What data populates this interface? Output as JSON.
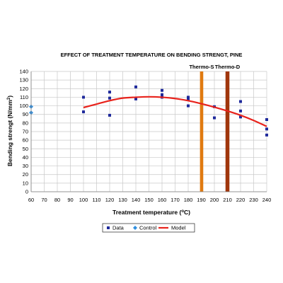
{
  "chart_data": {
    "type": "scatter",
    "title": "EFFECT OF TREATMENT TEMPERATURE ON BENDING STRENGT, PINE",
    "xlabel_main": "Treatment temperature (",
    "xlabel_sup": "o",
    "xlabel_tail": "C)",
    "ylabel_main": "Bending strengt (N/mm",
    "ylabel_sup": "2",
    "ylabel_tail": ")",
    "xlim": [
      60,
      240
    ],
    "ylim": [
      0,
      140
    ],
    "x_ticks": [
      "60",
      "70",
      "80",
      "90",
      "100",
      "110",
      "120",
      "130",
      "140",
      "150",
      "160",
      "170",
      "180",
      "190",
      "200",
      "210",
      "220",
      "230",
      "240"
    ],
    "y_ticks": [
      "0",
      "10",
      "20",
      "30",
      "40",
      "50",
      "60",
      "70",
      "80",
      "90",
      "100",
      "110",
      "120",
      "130",
      "140"
    ],
    "grid": true,
    "legend_position": "bottom-center",
    "bands": [
      {
        "name": "Thermo-S",
        "x_from": 189,
        "x_to": 191.5,
        "color": "#e07a10"
      },
      {
        "name": "Thermo-D",
        "x_from": 208.5,
        "x_to": 211.5,
        "color": "#a0360c"
      }
    ],
    "series": [
      {
        "name": "Data",
        "kind": "points",
        "marker": "square",
        "color": "#1f2a9c",
        "points": [
          [
            100,
            110
          ],
          [
            100,
            93
          ],
          [
            120,
            116
          ],
          [
            120,
            109
          ],
          [
            120,
            89
          ],
          [
            140,
            122
          ],
          [
            140,
            108
          ],
          [
            160,
            118
          ],
          [
            160,
            113
          ],
          [
            160,
            110
          ],
          [
            180,
            110
          ],
          [
            180,
            108
          ],
          [
            180,
            100
          ],
          [
            200,
            99
          ],
          [
            200,
            86
          ],
          [
            220,
            105
          ],
          [
            220,
            94
          ],
          [
            220,
            87
          ],
          [
            240,
            84
          ],
          [
            240,
            73
          ],
          [
            240,
            66
          ]
        ]
      },
      {
        "name": "Control",
        "kind": "points",
        "marker": "diamond",
        "color": "#2f8fe0",
        "points": [
          [
            60,
            99
          ],
          [
            60,
            92
          ]
        ]
      },
      {
        "name": "Model",
        "kind": "line",
        "color": "#e8231c",
        "points": [
          [
            100,
            98
          ],
          [
            110,
            102
          ],
          [
            120,
            106
          ],
          [
            130,
            109
          ],
          [
            140,
            110
          ],
          [
            150,
            110.5
          ],
          [
            160,
            110
          ],
          [
            170,
            108.5
          ],
          [
            180,
            106
          ],
          [
            190,
            102.5
          ],
          [
            200,
            98.5
          ],
          [
            210,
            94
          ],
          [
            220,
            89
          ],
          [
            230,
            83
          ],
          [
            240,
            76
          ]
        ]
      }
    ]
  }
}
